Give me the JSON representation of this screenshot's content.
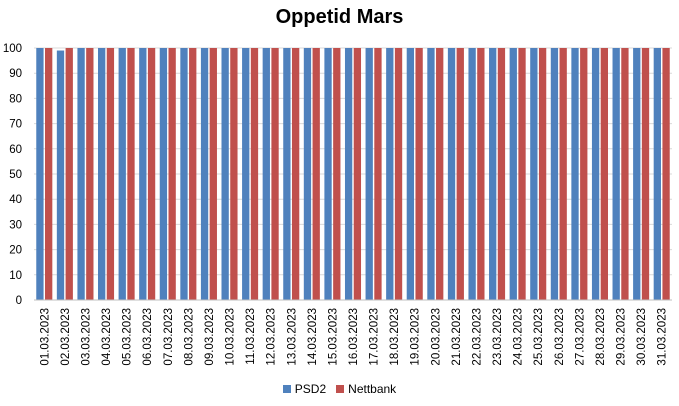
{
  "chart_data": {
    "type": "bar",
    "title": "Oppetid Mars",
    "categories": [
      "01.03.2023",
      "02.03.2023",
      "03.03.2023",
      "04.03.2023",
      "05.03.2023",
      "06.03.2023",
      "07.03.2023",
      "08.03.2023",
      "09.03.2023",
      "10.03.2023",
      "11.03.2023",
      "12.03.2023",
      "13.03.2023",
      "14.03.2023",
      "15.03.2023",
      "16.03.2023",
      "17.03.2023",
      "18.03.2023",
      "19.03.2023",
      "20.03.2023",
      "21.03.2023",
      "22.03.2023",
      "23.03.2023",
      "24.03.2023",
      "25.03.2023",
      "26.03.2023",
      "27.03.2023",
      "28.03.2023",
      "29.03.2023",
      "30.03.2023",
      "31.03.2023"
    ],
    "series": [
      {
        "name": "PSD2",
        "color": "#4F81BD",
        "values": [
          100,
          99,
          100,
          100,
          100,
          100,
          100,
          100,
          100,
          100,
          100,
          100,
          100,
          100,
          100,
          100,
          100,
          100,
          100,
          100,
          100,
          100,
          100,
          100,
          100,
          100,
          100,
          100,
          100,
          100,
          100
        ]
      },
      {
        "name": "Nettbank",
        "color": "#C0504D",
        "values": [
          100,
          100,
          100,
          100,
          100,
          100,
          100,
          100,
          100,
          100,
          100,
          100,
          100,
          100,
          100,
          100,
          100,
          100,
          100,
          100,
          100,
          100,
          100,
          100,
          100,
          100,
          100,
          100,
          100,
          100,
          100
        ]
      }
    ],
    "ylim": [
      0,
      100
    ],
    "yticks": [
      0,
      10,
      20,
      30,
      40,
      50,
      60,
      70,
      80,
      90,
      100
    ],
    "xlabel": "",
    "ylabel": "",
    "grid": true,
    "legend_position": "bottom"
  }
}
